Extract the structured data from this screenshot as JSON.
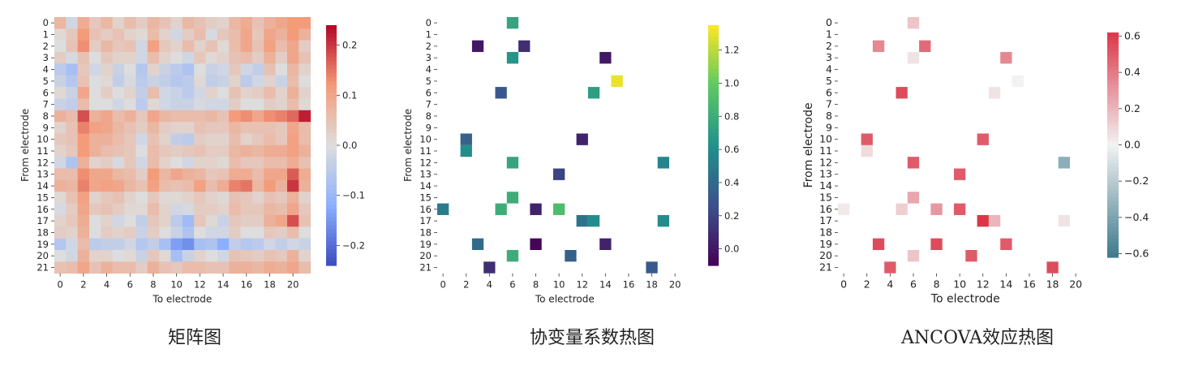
{
  "panels": [
    {
      "caption": "矩阵图",
      "xlabel": "To electrode",
      "ylabel": "From electrode",
      "colorbar_ticks": [
        "0.2",
        "0.1",
        "0.0",
        "−0.1",
        "−0.2"
      ]
    },
    {
      "caption": "协变量系数热图",
      "xlabel": "To electrode",
      "ylabel": "From electrode",
      "colorbar_ticks": [
        "1.2",
        "1.0",
        "0.8",
        "0.6",
        "0.4",
        "0.2",
        "0.0"
      ]
    },
    {
      "caption": "ANCOVA效应热图",
      "xlabel": "To electrode",
      "ylabel": "From electrode",
      "colorbar_ticks": [
        "0.6",
        "0.4",
        "0.2",
        "0.0",
        "−0.2",
        "−0.4",
        "−0.6"
      ]
    }
  ],
  "chart_data": [
    {
      "type": "heatmap",
      "title": "",
      "xlabel": "To electrode",
      "ylabel": "From electrode",
      "x_ticks": [
        "0",
        "2",
        "4",
        "6",
        "8",
        "10",
        "12",
        "14",
        "16",
        "18",
        "20"
      ],
      "y_ticks": [
        "0",
        "1",
        "2",
        "3",
        "4",
        "5",
        "6",
        "7",
        "8",
        "9",
        "10",
        "11",
        "12",
        "13",
        "14",
        "15",
        "16",
        "17",
        "18",
        "19",
        "20",
        "21"
      ],
      "colormap": "coolwarm",
      "clim": [
        -0.24,
        0.24
      ],
      "values": [
        [
          0.07,
          -0.02,
          0.09,
          0.04,
          0.07,
          0.02,
          0.06,
          0.03,
          0.07,
          0.05,
          0.02,
          0.07,
          0.05,
          0.03,
          0.02,
          0.07,
          0.09,
          0.05,
          0.08,
          0.1,
          0.12,
          0.12
        ],
        [
          0.01,
          0.04,
          0.12,
          0.05,
          0.03,
          0.05,
          0.02,
          0.01,
          0.06,
          0.02,
          -0.02,
          0.03,
          0.06,
          -0.01,
          0.04,
          0.06,
          0.1,
          0.04,
          0.1,
          0.08,
          0.12,
          0.08
        ],
        [
          0.0,
          0.05,
          0.13,
          0.03,
          0.07,
          0.04,
          0.05,
          -0.02,
          0.11,
          0.04,
          0.02,
          0.06,
          0.02,
          0.05,
          0.01,
          0.06,
          0.1,
          0.05,
          0.11,
          0.06,
          0.1,
          0.03
        ],
        [
          0.03,
          -0.01,
          0.05,
          0.0,
          0.04,
          0.02,
          0.02,
          -0.02,
          0.06,
          0.02,
          0.0,
          -0.02,
          0.04,
          0.01,
          0.02,
          0.05,
          0.06,
          0.03,
          0.08,
          0.03,
          0.1,
          0.05
        ],
        [
          -0.05,
          -0.08,
          0.04,
          -0.02,
          0.02,
          -0.03,
          0.0,
          -0.06,
          0.02,
          -0.03,
          -0.05,
          -0.07,
          0.0,
          -0.03,
          -0.02,
          0.04,
          -0.02,
          -0.04,
          0.05,
          0.0,
          0.07,
          0.02
        ],
        [
          -0.03,
          -0.06,
          0.05,
          0.0,
          0.01,
          -0.04,
          -0.01,
          -0.05,
          -0.03,
          -0.04,
          -0.06,
          -0.05,
          0.01,
          -0.04,
          -0.03,
          0.02,
          -0.05,
          -0.02,
          0.02,
          -0.03,
          0.06,
          0.0
        ],
        [
          0.01,
          -0.03,
          0.1,
          0.0,
          0.03,
          0.0,
          0.02,
          -0.04,
          0.06,
          -0.02,
          -0.03,
          -0.05,
          -0.02,
          0.02,
          0.0,
          0.05,
          0.02,
          0.03,
          0.06,
          0.02,
          0.08,
          0.02
        ],
        [
          -0.03,
          -0.04,
          0.06,
          0.0,
          0.0,
          -0.02,
          0.0,
          -0.05,
          0.01,
          -0.02,
          -0.03,
          -0.03,
          -0.01,
          -0.02,
          -0.02,
          0.03,
          0.0,
          0.0,
          0.03,
          0.02,
          0.06,
          0.01
        ],
        [
          0.08,
          0.06,
          0.18,
          0.08,
          0.1,
          0.06,
          0.08,
          0.04,
          0.1,
          0.07,
          0.06,
          0.06,
          0.06,
          0.07,
          0.05,
          0.12,
          0.13,
          0.1,
          0.13,
          0.14,
          0.16,
          0.22
        ],
        [
          0.02,
          0.05,
          0.14,
          0.11,
          0.1,
          0.07,
          0.05,
          0.03,
          0.07,
          0.03,
          0.02,
          0.02,
          0.05,
          0.04,
          0.04,
          0.07,
          0.05,
          0.05,
          0.05,
          0.04,
          0.1,
          0.06
        ],
        [
          0.04,
          0.05,
          0.12,
          0.08,
          0.08,
          0.06,
          0.04,
          -0.02,
          0.05,
          0.02,
          -0.04,
          -0.05,
          0.03,
          0.02,
          0.02,
          0.06,
          0.02,
          0.04,
          0.06,
          0.04,
          0.11,
          0.06
        ],
        [
          0.02,
          0.04,
          0.12,
          0.08,
          0.06,
          0.05,
          0.04,
          0.0,
          0.06,
          0.04,
          0.03,
          0.04,
          0.05,
          0.03,
          0.03,
          0.07,
          0.08,
          0.07,
          0.09,
          0.09,
          0.11,
          0.08
        ],
        [
          -0.02,
          -0.07,
          0.08,
          0.02,
          0.03,
          -0.01,
          0.04,
          -0.02,
          0.06,
          0.02,
          0.0,
          -0.02,
          0.02,
          0.02,
          0.01,
          0.06,
          0.04,
          0.04,
          0.06,
          0.06,
          0.09,
          0.05
        ],
        [
          0.06,
          0.06,
          0.13,
          0.1,
          0.1,
          0.07,
          0.06,
          0.03,
          0.12,
          0.07,
          0.1,
          0.08,
          0.07,
          0.04,
          0.05,
          0.09,
          0.09,
          0.06,
          0.1,
          0.1,
          0.17,
          0.09
        ],
        [
          0.08,
          0.07,
          0.14,
          0.1,
          0.11,
          0.1,
          0.07,
          0.05,
          0.11,
          0.06,
          0.05,
          0.06,
          0.11,
          0.06,
          0.09,
          0.14,
          0.15,
          0.07,
          0.12,
          0.08,
          0.2,
          0.08
        ],
        [
          0.01,
          0.05,
          0.11,
          0.02,
          0.04,
          0.05,
          0.02,
          0.0,
          0.04,
          0.01,
          0.01,
          0.02,
          0.04,
          0.02,
          0.01,
          0.05,
          0.04,
          0.02,
          0.05,
          0.04,
          0.08,
          0.02
        ],
        [
          -0.01,
          0.03,
          0.1,
          0.04,
          0.05,
          0.03,
          0.01,
          0.01,
          0.06,
          0.02,
          -0.02,
          -0.01,
          0.03,
          0.03,
          0.02,
          0.06,
          0.04,
          0.04,
          0.07,
          0.06,
          0.1,
          0.04
        ],
        [
          0.02,
          0.04,
          0.09,
          0.0,
          0.02,
          -0.02,
          0.0,
          -0.04,
          0.04,
          0.02,
          -0.05,
          -0.09,
          0.04,
          0.01,
          -0.03,
          0.04,
          0.03,
          0.03,
          0.08,
          0.1,
          0.18,
          0.05
        ],
        [
          0.03,
          0.02,
          0.08,
          0.0,
          0.03,
          0.02,
          0.03,
          -0.03,
          0.03,
          0.0,
          -0.03,
          -0.07,
          0.0,
          -0.02,
          -0.02,
          0.03,
          0.0,
          0.0,
          0.04,
          0.03,
          0.06,
          0.0
        ],
        [
          -0.06,
          -0.02,
          0.06,
          -0.05,
          -0.04,
          -0.04,
          -0.02,
          -0.06,
          -0.04,
          -0.08,
          -0.14,
          -0.16,
          -0.08,
          -0.07,
          -0.12,
          -0.04,
          -0.06,
          -0.05,
          -0.02,
          -0.04,
          -0.02,
          -0.03
        ],
        [
          0.0,
          -0.02,
          0.08,
          0.02,
          0.02,
          0.0,
          0.01,
          -0.03,
          0.04,
          0.01,
          -0.08,
          -0.03,
          0.02,
          0.0,
          -0.02,
          0.05,
          0.04,
          0.03,
          0.05,
          0.04,
          0.08,
          0.02
        ],
        [
          0.05,
          0.06,
          0.1,
          0.05,
          0.08,
          0.06,
          0.06,
          0.03,
          0.08,
          0.05,
          0.04,
          0.06,
          0.06,
          0.05,
          0.05,
          0.08,
          0.08,
          0.07,
          0.09,
          0.08,
          0.1,
          0.06
        ]
      ]
    },
    {
      "type": "heatmap",
      "title": "",
      "xlabel": "To electrode",
      "ylabel": "From electrode",
      "x_ticks": [
        "0",
        "2",
        "4",
        "6",
        "8",
        "10",
        "12",
        "14",
        "16",
        "18",
        "20"
      ],
      "y_ticks": [
        "0",
        "1",
        "2",
        "3",
        "4",
        "5",
        "6",
        "7",
        "8",
        "9",
        "10",
        "11",
        "12",
        "13",
        "14",
        "15",
        "16",
        "17",
        "18",
        "19",
        "20",
        "21"
      ],
      "colormap": "viridis",
      "clim": [
        -0.1,
        1.35
      ],
      "cells": [
        {
          "row": 0,
          "col": 6,
          "value": 0.75
        },
        {
          "row": 2,
          "col": 3,
          "value": 0.0
        },
        {
          "row": 2,
          "col": 7,
          "value": 0.1
        },
        {
          "row": 3,
          "col": 6,
          "value": 0.65
        },
        {
          "row": 3,
          "col": 14,
          "value": 0.0
        },
        {
          "row": 5,
          "col": 15,
          "value": 1.3
        },
        {
          "row": 6,
          "col": 5,
          "value": 0.3
        },
        {
          "row": 6,
          "col": 13,
          "value": 0.7
        },
        {
          "row": 10,
          "col": 2,
          "value": 0.35
        },
        {
          "row": 10,
          "col": 12,
          "value": 0.05
        },
        {
          "row": 11,
          "col": 2,
          "value": 0.6
        },
        {
          "row": 12,
          "col": 6,
          "value": 0.75
        },
        {
          "row": 12,
          "col": 19,
          "value": 0.55
        },
        {
          "row": 13,
          "col": 10,
          "value": 0.2
        },
        {
          "row": 15,
          "col": 6,
          "value": 0.8
        },
        {
          "row": 16,
          "col": 0,
          "value": 0.5
        },
        {
          "row": 16,
          "col": 5,
          "value": 0.8
        },
        {
          "row": 16,
          "col": 8,
          "value": 0.05
        },
        {
          "row": 16,
          "col": 10,
          "value": 0.9
        },
        {
          "row": 17,
          "col": 12,
          "value": 0.45
        },
        {
          "row": 17,
          "col": 13,
          "value": 0.6
        },
        {
          "row": 17,
          "col": 19,
          "value": 0.6
        },
        {
          "row": 19,
          "col": 3,
          "value": 0.4
        },
        {
          "row": 19,
          "col": 8,
          "value": -0.08
        },
        {
          "row": 19,
          "col": 14,
          "value": 0.05
        },
        {
          "row": 20,
          "col": 6,
          "value": 0.8
        },
        {
          "row": 20,
          "col": 11,
          "value": 0.35
        },
        {
          "row": 21,
          "col": 4,
          "value": 0.1
        },
        {
          "row": 21,
          "col": 18,
          "value": 0.3
        }
      ]
    },
    {
      "type": "heatmap",
      "title": "",
      "xlabel": "To electrode",
      "ylabel": "From electrode",
      "x_ticks": [
        "0",
        "2",
        "4",
        "6",
        "8",
        "10",
        "12",
        "14",
        "16",
        "18",
        "20"
      ],
      "y_ticks": [
        "0",
        "1",
        "2",
        "3",
        "4",
        "5",
        "6",
        "7",
        "8",
        "9",
        "10",
        "11",
        "12",
        "13",
        "14",
        "15",
        "16",
        "17",
        "18",
        "19",
        "20",
        "21"
      ],
      "colormap": "diverging teal-white-red",
      "clim": [
        -0.62,
        0.62
      ],
      "cells": [
        {
          "row": 0,
          "col": 6,
          "value": 0.15
        },
        {
          "row": 2,
          "col": 3,
          "value": 0.35
        },
        {
          "row": 2,
          "col": 7,
          "value": 0.45
        },
        {
          "row": 3,
          "col": 6,
          "value": 0.05
        },
        {
          "row": 3,
          "col": 14,
          "value": 0.35
        },
        {
          "row": 5,
          "col": 15,
          "value": 0.0
        },
        {
          "row": 6,
          "col": 5,
          "value": 0.55
        },
        {
          "row": 6,
          "col": 13,
          "value": 0.05
        },
        {
          "row": 10,
          "col": 2,
          "value": 0.5
        },
        {
          "row": 10,
          "col": 12,
          "value": 0.5
        },
        {
          "row": 11,
          "col": 2,
          "value": 0.08
        },
        {
          "row": 12,
          "col": 6,
          "value": 0.5
        },
        {
          "row": 12,
          "col": 19,
          "value": -0.35
        },
        {
          "row": 13,
          "col": 10,
          "value": 0.5
        },
        {
          "row": 15,
          "col": 6,
          "value": 0.25
        },
        {
          "row": 16,
          "col": 0,
          "value": 0.03
        },
        {
          "row": 16,
          "col": 5,
          "value": 0.12
        },
        {
          "row": 16,
          "col": 8,
          "value": 0.3
        },
        {
          "row": 16,
          "col": 10,
          "value": 0.5
        },
        {
          "row": 17,
          "col": 12,
          "value": 0.62
        },
        {
          "row": 17,
          "col": 13,
          "value": 0.2
        },
        {
          "row": 17,
          "col": 19,
          "value": 0.05
        },
        {
          "row": 19,
          "col": 3,
          "value": 0.55
        },
        {
          "row": 19,
          "col": 8,
          "value": 0.55
        },
        {
          "row": 19,
          "col": 14,
          "value": 0.5
        },
        {
          "row": 20,
          "col": 6,
          "value": 0.15
        },
        {
          "row": 20,
          "col": 11,
          "value": 0.5
        },
        {
          "row": 21,
          "col": 4,
          "value": 0.5
        },
        {
          "row": 21,
          "col": 18,
          "value": 0.55
        }
      ]
    }
  ]
}
